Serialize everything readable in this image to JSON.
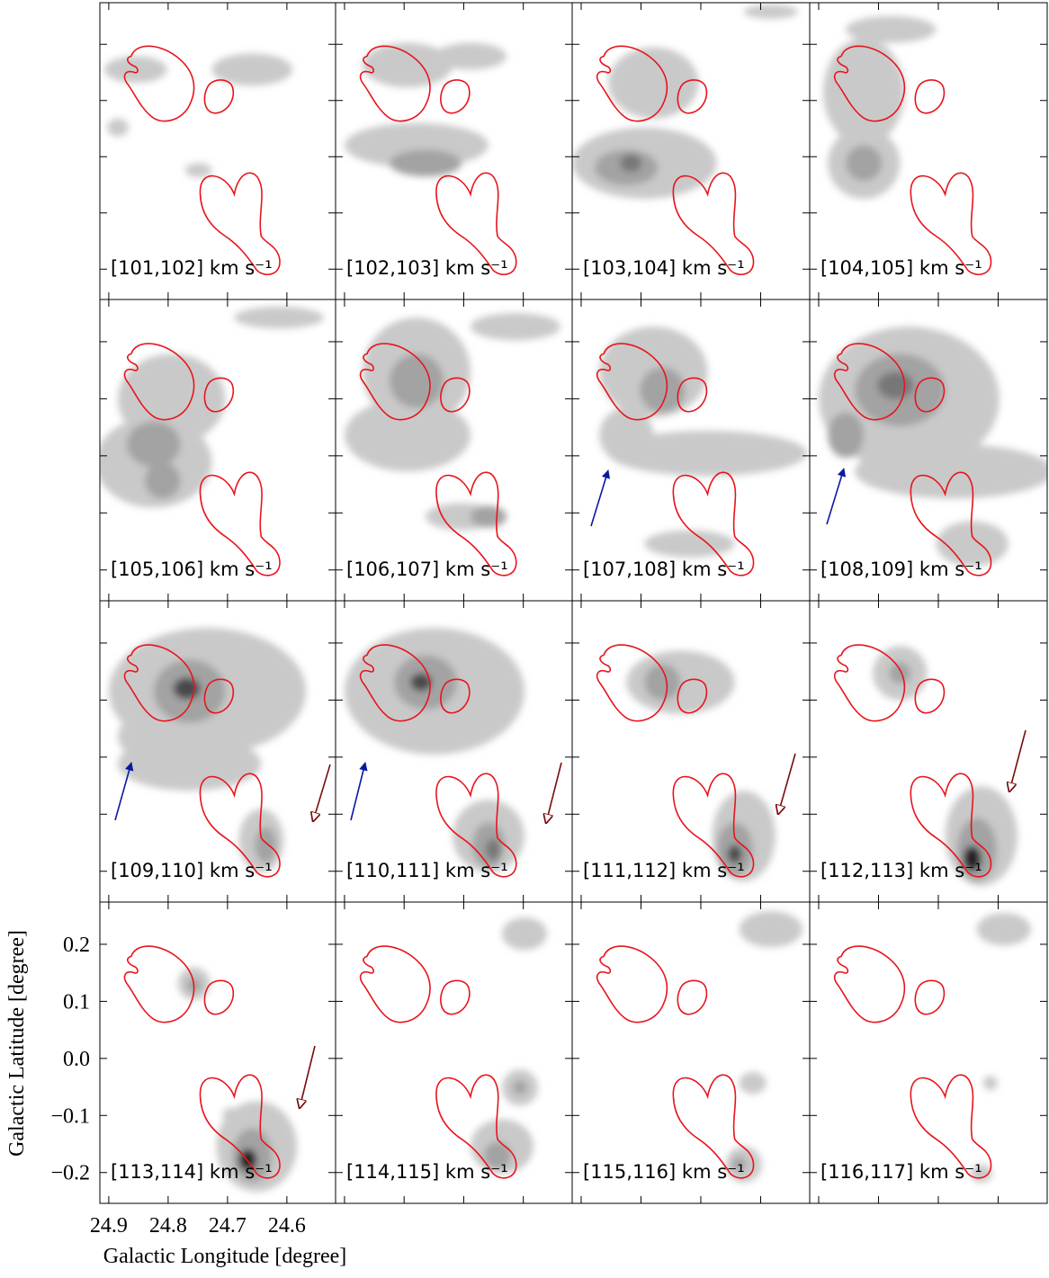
{
  "chart_data": {
    "type": "channel-map",
    "xlabel": "Galactic Longitude [degree]",
    "ylabel": "Galactic Latitude [degree]",
    "xlim": [
      24.915,
      24.518
    ],
    "ylim": [
      -0.254,
      0.274
    ],
    "xticks": [
      24.9,
      24.8,
      24.7,
      24.6
    ],
    "yticks": [
      {
        "value": -0.2,
        "label": "−0.2"
      },
      {
        "value": -0.1,
        "label": "−0.1"
      },
      {
        "value": 0,
        "label": "0.0"
      },
      0.1,
      0.2
    ],
    "panels": [
      "[101,102] km s⁻¹",
      "[102,103] km s⁻¹",
      "[103,104] km s⁻¹",
      "[104,105] km s⁻¹",
      "[105,106] km s⁻¹",
      "[106,107] km s⁻¹",
      "[107,108] km s⁻¹",
      "[108,109] km s⁻¹",
      "[109,110] km s⁻¹",
      "[110,111] km s⁻¹",
      "[111,112] km s⁻¹",
      "[112,113] km s⁻¹",
      "[113,114] km s⁻¹",
      "[114,115] km s⁻¹",
      "[115,116] km s⁻¹",
      "[116,117] km s⁻¹"
    ],
    "contour_color": "#e8141c"
  }
}
